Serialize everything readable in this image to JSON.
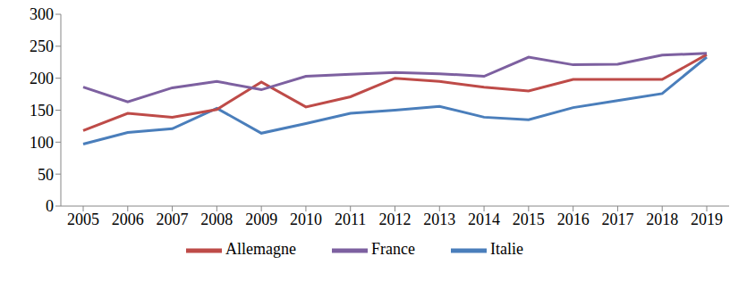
{
  "chart_data": {
    "type": "line",
    "categories": [
      "2005",
      "2006",
      "2007",
      "2008",
      "2009",
      "2010",
      "2011",
      "2012",
      "2013",
      "2014",
      "2015",
      "2016",
      "2017",
      "2018",
      "2019"
    ],
    "series": [
      {
        "name": "Italie",
        "color": "#4a7ebb",
        "values": [
          97,
          115,
          121,
          153,
          114,
          129,
          145,
          150,
          156,
          139,
          135,
          154,
          165,
          176,
          233
        ]
      },
      {
        "name": "Allemagne",
        "color": "#be4b48",
        "values": [
          118,
          145,
          139,
          151,
          194,
          155,
          171,
          200,
          195,
          186,
          180,
          198,
          198,
          198,
          237
        ]
      },
      {
        "name": "France",
        "color": "#7d60a0",
        "values": [
          186,
          163,
          185,
          195,
          182,
          203,
          206,
          209,
          207,
          203,
          233,
          221,
          222,
          236,
          239
        ]
      }
    ],
    "ylim": [
      0,
      300
    ],
    "yticks": [
      0,
      50,
      100,
      150,
      200,
      250,
      300
    ],
    "grid": false,
    "legend": "bottom"
  }
}
